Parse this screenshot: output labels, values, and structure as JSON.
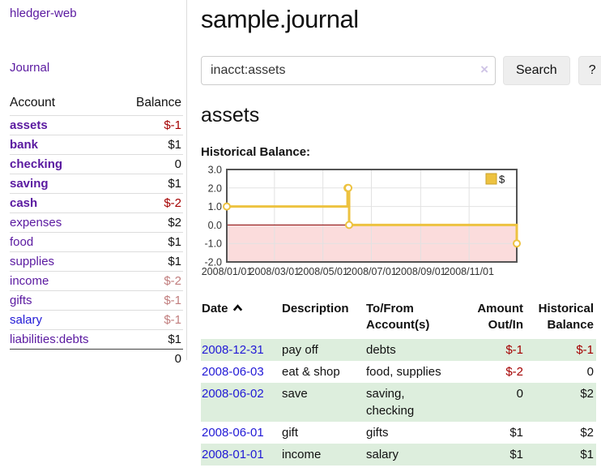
{
  "app": {
    "title": "hledger-web"
  },
  "sidebar": {
    "journal_link_label": "Journal",
    "accounts_header": {
      "account": "Account",
      "balance": "Balance"
    },
    "accounts": [
      {
        "name": "assets",
        "balance": "$-1",
        "depth": 1,
        "bold": true
      },
      {
        "name": "bank",
        "balance": "$1",
        "depth": 2,
        "bold": true
      },
      {
        "name": "checking",
        "balance": "0",
        "depth": 3,
        "bold": true
      },
      {
        "name": "saving",
        "balance": "$1",
        "depth": 3,
        "bold": true
      },
      {
        "name": "cash",
        "balance": "$-2",
        "depth": 2,
        "bold": true
      },
      {
        "name": "expenses",
        "balance": "$2",
        "depth": 1,
        "bold": false
      },
      {
        "name": "food",
        "balance": "$1",
        "depth": 2,
        "bold": false
      },
      {
        "name": "supplies",
        "balance": "$1",
        "depth": 2,
        "bold": false
      },
      {
        "name": "income",
        "balance": "$-2",
        "depth": 1,
        "bold": false
      },
      {
        "name": "gifts",
        "balance": "$-1",
        "depth": 2,
        "bold": false
      },
      {
        "name": "salary",
        "balance": "$-1",
        "depth": 2,
        "bold": false,
        "link_color": "blue"
      },
      {
        "name": "liabilities:debts",
        "balance": "$1",
        "depth": 1,
        "bold": false
      }
    ],
    "total": "0"
  },
  "header": {
    "title": "sample.journal"
  },
  "search": {
    "value": "inacct:assets",
    "clear_icon": "×",
    "button_label": "Search",
    "help_label": "?"
  },
  "account_page": {
    "title": "assets",
    "chart_heading": "Historical Balance:"
  },
  "chart_data": {
    "type": "line",
    "step": true,
    "title": "Historical Balance of assets",
    "series": [
      {
        "name": "$",
        "color": "#edc240",
        "points": [
          [
            "2008/01/01",
            1
          ],
          [
            "2008/06/01",
            2
          ],
          [
            "2008/06/02",
            2
          ],
          [
            "2008/06/03",
            0
          ],
          [
            "2008/12/31",
            -1
          ]
        ]
      }
    ],
    "x_tick_labels": [
      "2008/01/01",
      "2008/03/01",
      "2008/05/01",
      "2008/07/01",
      "2008/09/01",
      "2008/11/01"
    ],
    "y_tick_labels": [
      "3.0",
      "2.0",
      "1.0",
      "0.0",
      "-1.0",
      "-2.0"
    ],
    "ylim": [
      -2,
      3
    ],
    "x_domain": [
      "2008/01/01",
      "2008/12/31"
    ],
    "grid": true,
    "negative_region_color": "#fbdcdc",
    "zero_line_color": "#8b0000",
    "legend": {
      "position": "top-right",
      "label": "$"
    }
  },
  "transactions": {
    "columns": [
      "Date",
      "Description",
      "To/From Account(s)",
      "Amount Out/In",
      "Historical Balance"
    ],
    "sort_column": "Date",
    "sort_direction": "ascending",
    "rows": [
      {
        "date": "2008-12-31",
        "description": "pay off",
        "accounts": "debts",
        "amount": "$-1",
        "balance": "$-1"
      },
      {
        "date": "2008-06-03",
        "description": "eat & shop",
        "accounts": "food, supplies",
        "amount": "$-2",
        "balance": "0"
      },
      {
        "date": "2008-06-02",
        "description": "save",
        "accounts": "saving,\nchecking",
        "amount": "0",
        "balance": "$2"
      },
      {
        "date": "2008-06-01",
        "description": "gift",
        "accounts": "gifts",
        "amount": "$1",
        "balance": "$2"
      },
      {
        "date": "2008-01-01",
        "description": "income",
        "accounts": "salary",
        "amount": "$1",
        "balance": "$1"
      }
    ]
  }
}
